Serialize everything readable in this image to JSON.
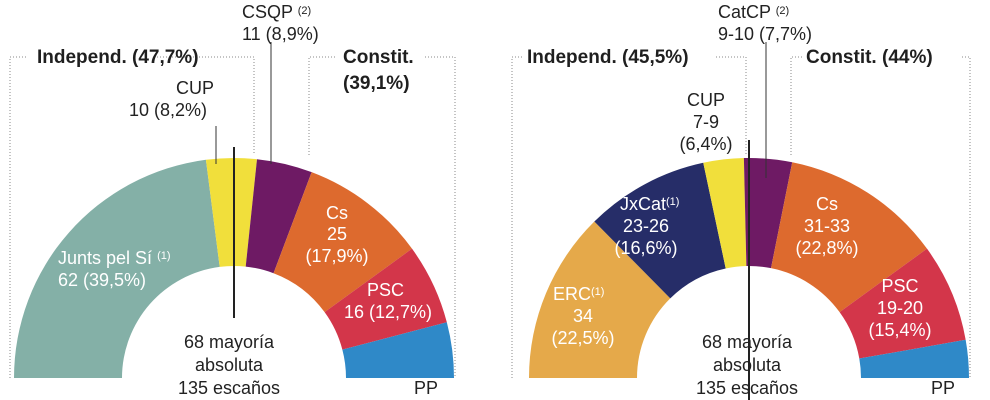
{
  "chart_data": [
    {
      "type": "half-donut",
      "total_seats": 135,
      "majority_label": "68 mayoría",
      "majority_label_2": "absoluta",
      "total_label": "135 escaños",
      "groups": [
        {
          "label": "Independ. (47,7%)"
        },
        {
          "label": "Constit.",
          "label_2": "(39,1%)"
        }
      ],
      "segments": [
        {
          "party": "Junts pel Sí",
          "note": "(1)",
          "detail": "62 (39,5%)",
          "seats": 62,
          "color": "#84b0a7"
        },
        {
          "party": "CUP",
          "note": "",
          "detail": "10 (8,2%)",
          "seats": 10,
          "color": "#f1df3b"
        },
        {
          "party": "CSQP",
          "note": "(2)",
          "detail": "11 (8,9%)",
          "seats": 11,
          "color": "#6e1a64"
        },
        {
          "party": "Cs",
          "note": "",
          "detail": "25",
          "detail_2": "(17,9%)",
          "seats": 25,
          "color": "#dd6a2e"
        },
        {
          "party": "PSC",
          "note": "",
          "detail": "16 (12,7%)",
          "seats": 16,
          "color": "#d3364a"
        },
        {
          "party": "PP",
          "note": "",
          "detail": "",
          "seats": 11,
          "color": "#2f89c8"
        }
      ]
    },
    {
      "type": "half-donut",
      "total_seats": 135,
      "majority_label": "68 mayoría",
      "majority_label_2": "absoluta",
      "total_label": "135 escaños",
      "groups": [
        {
          "label": "Independ. (45,5%)"
        },
        {
          "label": "Constit. (44%)"
        }
      ],
      "segments": [
        {
          "party": "ERC",
          "note": "(1)",
          "detail": "34",
          "detail_2": "(22,5%)",
          "seats": 34,
          "color": "#e5a94a"
        },
        {
          "party": "JxCat",
          "note": "(1)",
          "detail": "23-26",
          "detail_2": "(16,6%)",
          "seats": 24.5,
          "color": "#262d68"
        },
        {
          "party": "CUP",
          "note": "",
          "detail": "7-9",
          "detail_2": "(6,4%)",
          "seats": 8,
          "color": "#f1df3b"
        },
        {
          "party": "CatCP",
          "note": "(2)",
          "detail": "9-10 (7,7%)",
          "seats": 9.5,
          "color": "#6e1a64"
        },
        {
          "party": "Cs",
          "note": "",
          "detail": "31-33",
          "detail_2": "(22,8%)",
          "seats": 32,
          "color": "#dd6a2e"
        },
        {
          "party": "PSC",
          "note": "",
          "detail": "19-20",
          "detail_2": "(15,4%)",
          "seats": 19.5,
          "color": "#d3364a"
        },
        {
          "party": "PP",
          "note": "",
          "detail": "",
          "seats": 7.5,
          "color": "#2f89c8"
        }
      ]
    }
  ]
}
